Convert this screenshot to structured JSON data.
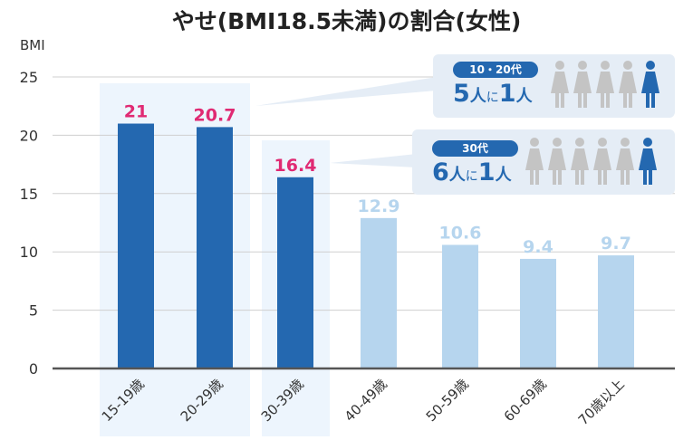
{
  "chart_data": {
    "type": "bar",
    "title": "やせ(BMI18.5未満)の割合(女性)",
    "ylabel": "BMI",
    "xlabel": "",
    "ylim": [
      0,
      25
    ],
    "yticks": [
      "0",
      "5",
      "10",
      "15",
      "20",
      "25"
    ],
    "grid": true,
    "categories": [
      "15-19歳",
      "20-29歳",
      "30-39歳",
      "40-49歳",
      "50-59歳",
      "60-69歳",
      "70歳以上"
    ],
    "values": [
      21,
      20.7,
      16.4,
      12.9,
      10.6,
      9.4,
      9.7
    ],
    "value_labels": [
      "21",
      "20.7",
      "16.4",
      "12.9",
      "10.6",
      "9.4",
      "9.7"
    ],
    "highlighted": [
      true,
      true,
      true,
      false,
      false,
      false,
      false
    ]
  },
  "colors": {
    "dark_bar": "#2468b0",
    "light_bar": "#b6d5ee",
    "highlight_label": "#e02a73",
    "light_label": "#b6d5ee",
    "band": "#edf5fd",
    "person_gray": "#c4c4c4"
  },
  "callouts": [
    {
      "tag": "10・20代",
      "n": "5",
      "mid1": "人",
      "ni": "に",
      "one": "1",
      "mid2": "人",
      "people": 5
    },
    {
      "tag": "30代",
      "n": "6",
      "mid1": "人",
      "ni": "に",
      "one": "1",
      "mid2": "人",
      "people": 6
    }
  ]
}
